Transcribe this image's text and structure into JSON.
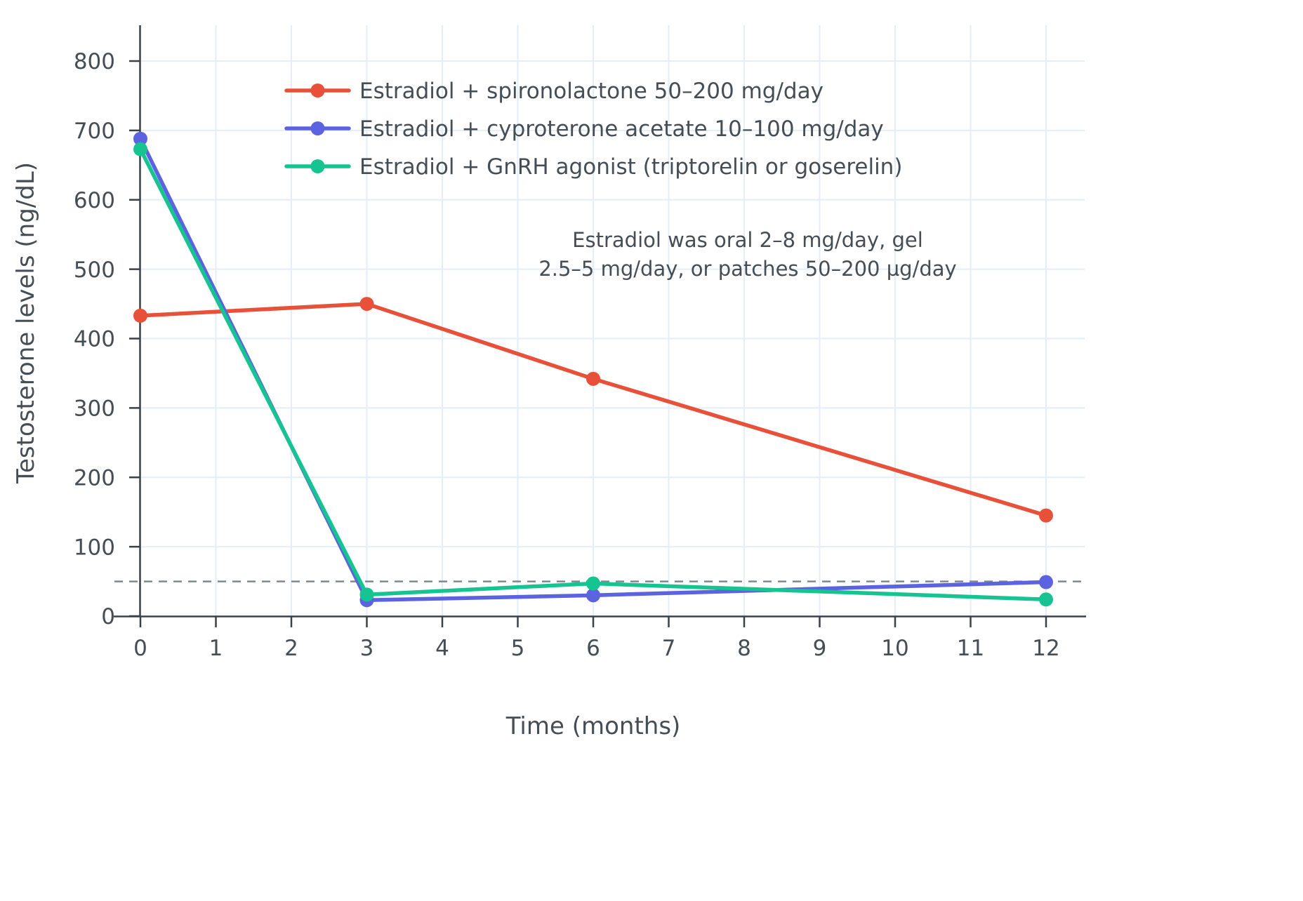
{
  "colors": {
    "background": "#ffffff",
    "axis": "#3a4148",
    "text": "#454d55",
    "grid": "#e4eef8",
    "reference_line": "#7e8890",
    "series_red": "#e8503a",
    "series_blue": "#5b63e0",
    "series_green": "#16c491"
  },
  "chart_data": {
    "type": "line",
    "title": "",
    "xlabel": "Time (months)",
    "ylabel": "Testosterone levels (ng/dL)",
    "x": [
      0,
      3,
      6,
      12
    ],
    "xlim": [
      0,
      12
    ],
    "ylim": [
      0,
      850
    ],
    "xticks": [
      0,
      1,
      2,
      3,
      4,
      5,
      6,
      7,
      8,
      9,
      10,
      11,
      12
    ],
    "yticks": [
      0,
      100,
      200,
      300,
      400,
      500,
      600,
      700,
      800
    ],
    "grid": true,
    "legend_position": "top-left-inside",
    "series": [
      {
        "name": "Estradiol + spironolactone 50–200 mg/day",
        "color": "#e8503a",
        "values": [
          433,
          450,
          342,
          145
        ]
      },
      {
        "name": "Estradiol + cyproterone acetate 10–100 mg/day",
        "color": "#5b63e0",
        "values": [
          688,
          23,
          30,
          49
        ]
      },
      {
        "name": "Estradiol + GnRH agonist (triptorelin or goserelin)",
        "color": "#16c491",
        "values": [
          673,
          31,
          47,
          24
        ]
      }
    ],
    "reference_line": {
      "y": 50,
      "style": "dashed",
      "color": "#7e8890"
    },
    "annotation": {
      "lines": [
        "Estradiol was oral 2–8 mg/day, gel",
        "2.5–5 mg/day, or patches 50–200 µg/day"
      ]
    }
  }
}
